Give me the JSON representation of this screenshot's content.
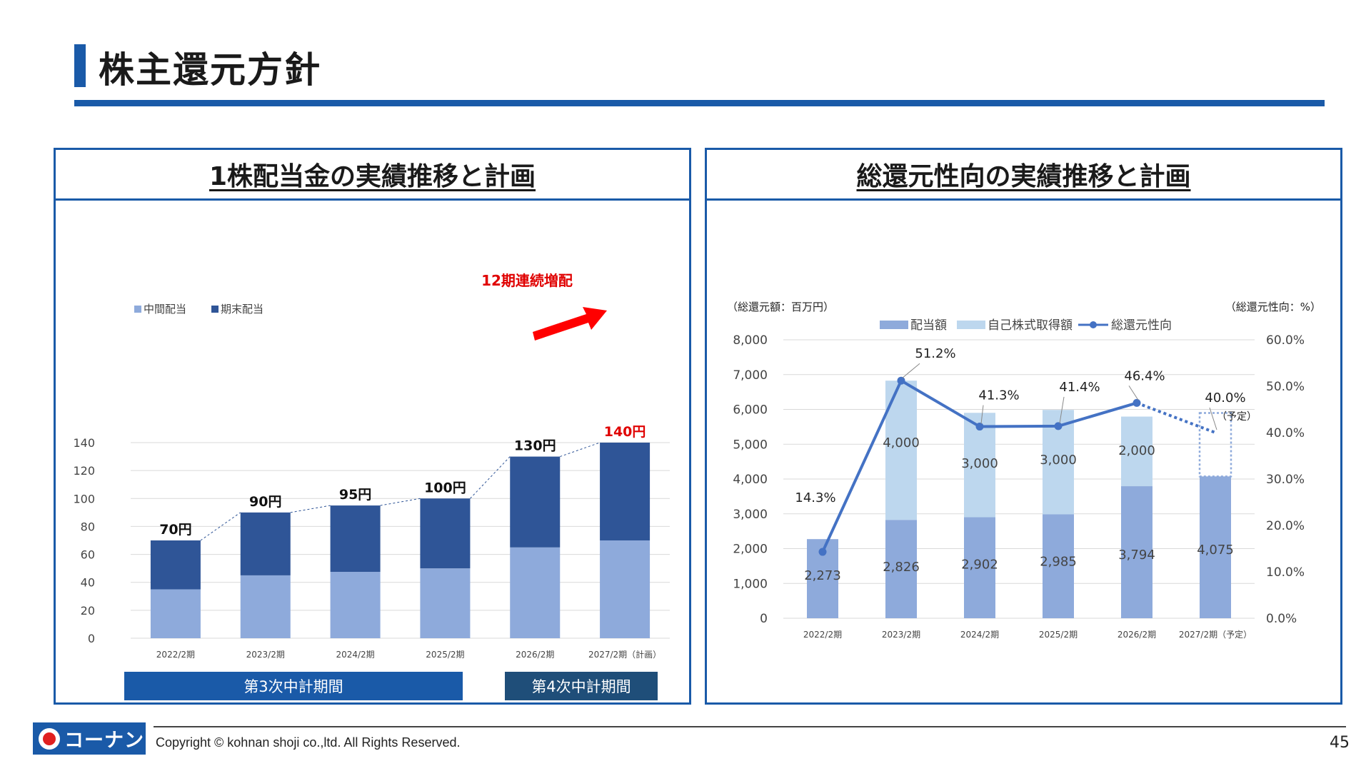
{
  "page": {
    "title": "株主還元方針",
    "copyright": "Copyright © kohnan shoji co.,ltd. All Rights Reserved.",
    "page_number": "45",
    "logo_text": "コーナン",
    "accent_color": "#1a5aa8"
  },
  "chart_data": [
    {
      "type": "bar",
      "stacked": true,
      "title": "1株配当金の実績推移と計画",
      "categories": [
        "2022/2期",
        "2023/2期",
        "2024/2期",
        "2025/2期",
        "2026/2期",
        "2027/2期（計画）"
      ],
      "series": [
        {
          "name": "中間配当",
          "values": [
            35,
            45,
            47.5,
            50,
            65,
            70
          ],
          "color": "#8eaadb"
        },
        {
          "name": "期末配当",
          "values": [
            35,
            45,
            47.5,
            50,
            65,
            70
          ],
          "color": "#2f5597"
        }
      ],
      "totals": [
        70,
        90,
        95,
        100,
        130,
        140
      ],
      "total_labels": [
        "70円",
        "90円",
        "95円",
        "100円",
        "130円",
        "140円"
      ],
      "ylim": [
        0,
        140
      ],
      "yticks": [
        "0",
        "20",
        "40",
        "60",
        "80",
        "100",
        "120",
        "140"
      ],
      "grid": true,
      "legend": "top-left",
      "annotation": "12期連続増配",
      "periods": [
        {
          "label": "第3次中計期間",
          "from": 0,
          "to": 3,
          "color": "#1a5aa8"
        },
        {
          "label": "第4次中計期間",
          "from": 4,
          "to": 5,
          "color": "#1f4e79"
        }
      ]
    },
    {
      "type": "bar+line",
      "stacked": true,
      "title": "総還元性向の実績推移と計画",
      "left_axis_label": "（総還元額：百万円）",
      "right_axis_label": "（総還元性向：%）",
      "categories": [
        "2022/2期",
        "2023/2期",
        "2024/2期",
        "2025/2期",
        "2026/2期",
        "2027/2期（予定）"
      ],
      "series": [
        {
          "name": "配当額",
          "values": [
            2273,
            2826,
            2902,
            2985,
            3794,
            4075
          ],
          "labels": [
            "2,273",
            "2,826",
            "2,902",
            "2,985",
            "3,794",
            "4,075"
          ],
          "color": "#8eaadb"
        },
        {
          "name": "自己株式取得額",
          "values": [
            0,
            4000,
            3000,
            3000,
            2000,
            0
          ],
          "labels": [
            "",
            "4,000",
            "3,000",
            "3,000",
            "2,000",
            ""
          ],
          "color": "#bdd7ee"
        },
        {
          "name": "総還元性向",
          "axis": "right",
          "values": [
            14.3,
            51.2,
            41.3,
            41.4,
            46.4,
            40.0
          ],
          "labels": [
            "14.3%",
            "51.2%",
            "41.3%",
            "41.4%",
            "46.4%",
            "40.0%"
          ],
          "color": "#4472c4"
        }
      ],
      "planned_note": "（予定）",
      "ylim": [
        0,
        8000
      ],
      "yticks": [
        "0",
        "1,000",
        "2,000",
        "3,000",
        "4,000",
        "5,000",
        "6,000",
        "7,000",
        "8,000"
      ],
      "y2lim": [
        0,
        60
      ],
      "y2ticks": [
        "0.0%",
        "10.0%",
        "20.0%",
        "30.0%",
        "40.0%",
        "50.0%",
        "60.0%"
      ],
      "grid": true,
      "legend": "top"
    }
  ]
}
